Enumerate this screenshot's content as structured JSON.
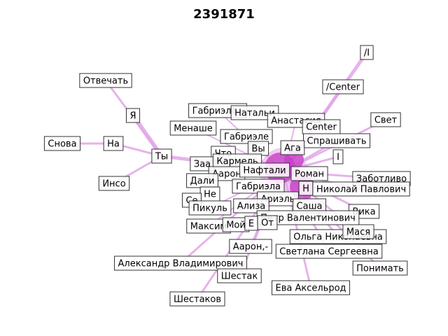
{
  "title": "2391871",
  "colors": {
    "edge": "#e2a6e8",
    "node_hub": "#c83fc8",
    "node_mid": "#e8a0e8",
    "node_light": "#fbe9fb",
    "label_border": "#333333",
    "label_fill": "#ffffff"
  },
  "nodes": [
    {
      "id": "i_slash",
      "label": "/I"
    },
    {
      "id": "center_slash",
      "label": "/Center"
    },
    {
      "id": "svet",
      "label": "Свет"
    },
    {
      "id": "otvechat",
      "label": "Отвечать"
    },
    {
      "id": "ya",
      "label": "Я"
    },
    {
      "id": "snova",
      "label": "Снова"
    },
    {
      "id": "na",
      "label": "На"
    },
    {
      "id": "ty",
      "label": "Ты"
    },
    {
      "id": "inso",
      "label": "Инсо"
    },
    {
      "id": "gabriela_dash",
      "label": "Габриэла,-"
    },
    {
      "id": "natal",
      "label": "Натальи"
    },
    {
      "id": "anastasia",
      "label": "Анастасия"
    },
    {
      "id": "menashe",
      "label": "Менаше"
    },
    {
      "id": "center",
      "label": "Center"
    },
    {
      "id": "gabriele",
      "label": "Габриэле"
    },
    {
      "id": "sprashivat",
      "label": "Спрашивать"
    },
    {
      "id": "chto",
      "label": "Что"
    },
    {
      "id": "vy",
      "label": "Вы"
    },
    {
      "id": "aga",
      "label": "Ага"
    },
    {
      "id": "i_cap",
      "label": "I"
    },
    {
      "id": "zaa",
      "label": "Заа"
    },
    {
      "id": "karmel",
      "label": "Кармель"
    },
    {
      "id": "aaron",
      "label": "Аарон"
    },
    {
      "id": "naftali",
      "label": "Нафтали"
    },
    {
      "id": "roman",
      "label": "Роман"
    },
    {
      "id": "zabotlivo",
      "label": "Заботливо"
    },
    {
      "id": "dali",
      "label": "Дали"
    },
    {
      "id": "gabriela",
      "label": "Габриэла"
    },
    {
      "id": "n_hub",
      "label": "Н"
    },
    {
      "id": "nikolai",
      "label": "Николай Павлович"
    },
    {
      "id": "ne",
      "label": "Не"
    },
    {
      "id": "se",
      "label": "Се"
    },
    {
      "id": "ariel",
      "label": "Ариэль"
    },
    {
      "id": "pikul",
      "label": "Пикуль"
    },
    {
      "id": "aliza",
      "label": "Ализа"
    },
    {
      "id": "sasha",
      "label": "Саша"
    },
    {
      "id": "vika",
      "label": "Вика"
    },
    {
      "id": "valentinovich",
      "label": "Петр Валентинович"
    },
    {
      "id": "maksim",
      "label": "Максим"
    },
    {
      "id": "moi",
      "label": "Мой"
    },
    {
      "id": "e_small",
      "label": "Е"
    },
    {
      "id": "ot",
      "label": "От"
    },
    {
      "id": "olga",
      "label": "Ольга Николаевна"
    },
    {
      "id": "masya",
      "label": "Мася"
    },
    {
      "id": "aaron_dash",
      "label": "Аарон,-"
    },
    {
      "id": "svetlana",
      "label": "Светлана Сергеевна"
    },
    {
      "id": "alexander",
      "label": "Александр Владимирович"
    },
    {
      "id": "ponimat",
      "label": "Понимать"
    },
    {
      "id": "shestak",
      "label": "Шестак"
    },
    {
      "id": "eva",
      "label": "Ева Аксельрод"
    },
    {
      "id": "shestakov",
      "label": "Шестаков"
    }
  ],
  "edges": [
    [
      "i_slash",
      "n_hub",
      5
    ],
    [
      "center_slash",
      "n_hub",
      3
    ],
    [
      "svet",
      "n_hub",
      3
    ],
    [
      "otvechat",
      "ty",
      3
    ],
    [
      "ya",
      "ty",
      6
    ],
    [
      "snova",
      "na",
      3
    ],
    [
      "na",
      "ty",
      3
    ],
    [
      "inso",
      "ty",
      3
    ],
    [
      "ty",
      "n_hub",
      5
    ],
    [
      "gabriela_dash",
      "n_hub",
      2
    ],
    [
      "anastasia",
      "n_hub",
      2
    ],
    [
      "menashe",
      "n_hub",
      2
    ],
    [
      "sprashivat",
      "n_hub",
      3
    ],
    [
      "i_cap",
      "n_hub",
      3
    ],
    [
      "zabotlivo",
      "n_hub",
      3
    ],
    [
      "nikolai",
      "n_hub",
      3
    ],
    [
      "vika",
      "n_hub",
      3
    ],
    [
      "masya",
      "n_hub",
      3
    ],
    [
      "ponimat",
      "n_hub",
      3
    ],
    [
      "eva",
      "n_hub",
      3
    ],
    [
      "svetlana",
      "n_hub",
      3
    ],
    [
      "alexander",
      "n_hub",
      3
    ],
    [
      "shestakov",
      "n_hub",
      3
    ],
    [
      "shestak",
      "n_hub",
      3
    ],
    [
      "olga",
      "n_hub",
      3
    ],
    [
      "aaron_dash",
      "n_hub",
      3
    ],
    [
      "maksim",
      "n_hub",
      2
    ],
    [
      "pikul",
      "n_hub",
      2
    ],
    [
      "karmel",
      "n_hub",
      3
    ],
    [
      "naftali",
      "n_hub",
      4
    ],
    [
      "roman",
      "n_hub",
      3
    ]
  ]
}
